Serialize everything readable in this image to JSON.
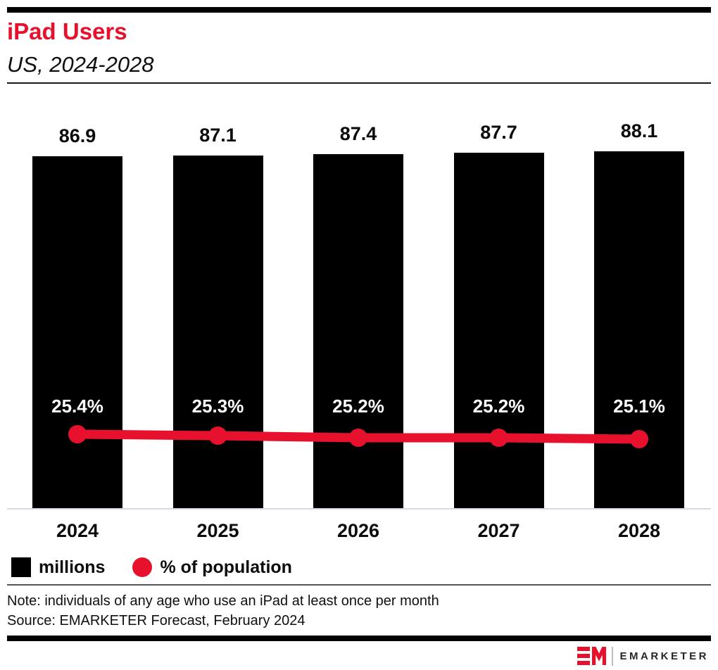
{
  "header": {
    "title": "iPad Users",
    "subtitle": "US, 2024-2028"
  },
  "chart_data": {
    "type": "bar",
    "title": "iPad Users",
    "subtitle": "US, 2024-2028",
    "categories": [
      "2024",
      "2025",
      "2026",
      "2027",
      "2028"
    ],
    "series": [
      {
        "name": "millions",
        "type": "bar",
        "color": "#000000",
        "values": [
          86.9,
          87.1,
          87.4,
          87.7,
          88.1
        ],
        "labels": [
          "86.9",
          "87.1",
          "87.4",
          "87.7",
          "88.1"
        ]
      },
      {
        "name": "% of population",
        "type": "line",
        "color": "#e8112d",
        "values": [
          25.4,
          25.3,
          25.2,
          25.2,
          25.1
        ],
        "labels": [
          "25.4%",
          "25.3%",
          "25.2%",
          "25.2%",
          "25.1%"
        ]
      }
    ],
    "ylim": [
      0,
      90
    ],
    "grid": false,
    "legend_position": "bottom"
  },
  "legend": {
    "items": [
      {
        "label": "millions",
        "swatch": "square",
        "color": "#000000"
      },
      {
        "label": "% of population",
        "swatch": "circle",
        "color": "#e8112d"
      }
    ]
  },
  "footnotes": {
    "note": "Note: individuals of any age who use an iPad at least once per month",
    "source": "Source: EMARKETER Forecast, February 2024"
  },
  "footer": {
    "brand": "EMARKETER"
  },
  "colors": {
    "accent_red": "#e8112d",
    "bar_black": "#000000",
    "axis_line": "#d6d9e6",
    "divider_dark": "#54565a"
  }
}
